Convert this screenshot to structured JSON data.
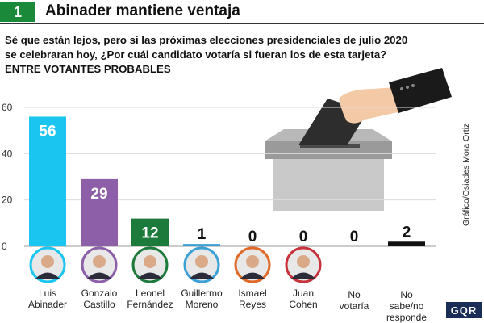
{
  "header": {
    "number": "1",
    "title": "Abinader mantiene ventaja"
  },
  "question": {
    "line1": "Sé que están lejos, pero si las próximas elecciones presidenciales de julio 2020",
    "line2": "se celebraran hoy, ¿Por cuál candidato votaría si fueran los de esta tarjeta?",
    "line3": "ENTRE VOTANTES PROBABLES"
  },
  "credit": "Gráfico/Osiades Mora Ortiz",
  "logo": "GQR",
  "chart_data": {
    "type": "bar",
    "categories": [
      [
        "Luis",
        "Abinader"
      ],
      [
        "Gonzalo",
        "Castillo"
      ],
      [
        "Leonel",
        "Fernández"
      ],
      [
        "Guillermo",
        "Moreno"
      ],
      [
        "Ismael",
        "Reyes"
      ],
      [
        "Juan",
        "Cohen"
      ],
      [
        "No",
        "votaría"
      ],
      [
        "No",
        "sabe/no",
        "responde"
      ]
    ],
    "values": [
      56,
      29,
      12,
      1,
      0,
      0,
      0,
      2
    ],
    "value_labels": [
      "56",
      "29",
      "12",
      "1",
      "0",
      "0",
      "0",
      "2"
    ],
    "colors": [
      "#1ac6f0",
      "#8c5fa8",
      "#1c7a3a",
      "#3aa0d6",
      "#e06a2a",
      "#c8323a",
      "#111111",
      "#111111"
    ],
    "ylim": [
      0,
      60
    ],
    "yticks": [
      "0",
      "20",
      "40",
      "60"
    ],
    "ytick_values": [
      0,
      20,
      40,
      60
    ],
    "grid": true,
    "xlabel": "",
    "ylabel": ""
  },
  "illustration": {
    "icon": "ballot-box-icon",
    "box_color": "#c4c4c4",
    "ballot_color": "#333333"
  }
}
